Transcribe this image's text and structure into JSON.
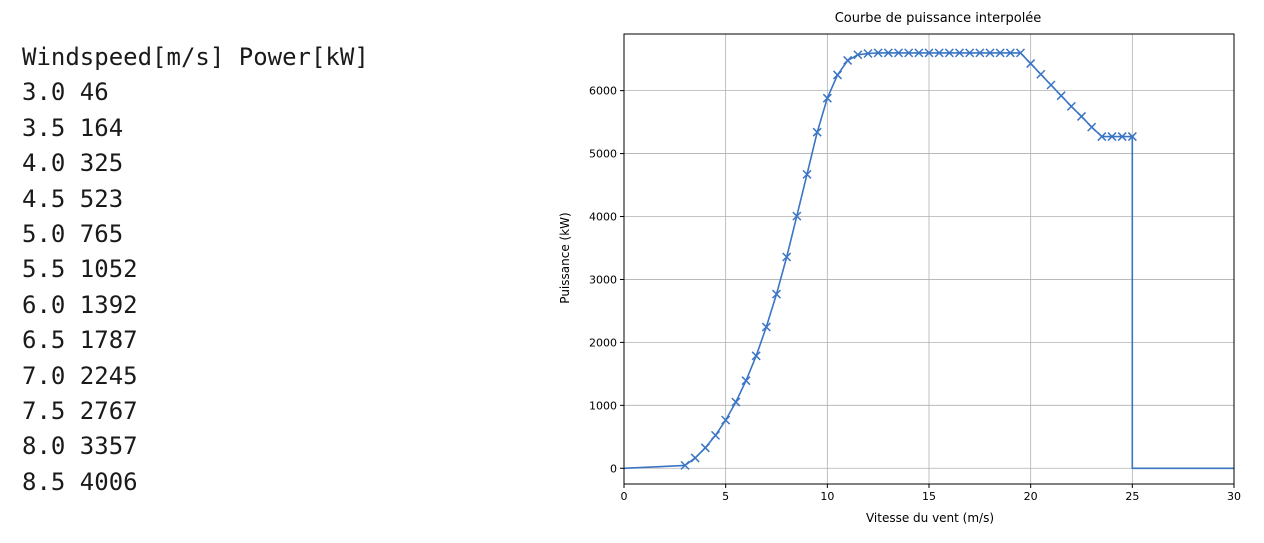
{
  "table": {
    "header": "Windspeed[m/s] Power[kW]",
    "rows": [
      {
        "speed": "3.0",
        "power": "46"
      },
      {
        "speed": "3.5",
        "power": "164"
      },
      {
        "speed": "4.0",
        "power": "325"
      },
      {
        "speed": "4.5",
        "power": "523"
      },
      {
        "speed": "5.0",
        "power": "765"
      },
      {
        "speed": "5.5",
        "power": "1052"
      },
      {
        "speed": "6.0",
        "power": "1392"
      },
      {
        "speed": "6.5",
        "power": "1787"
      },
      {
        "speed": "7.0",
        "power": "2245"
      },
      {
        "speed": "7.5",
        "power": "2767"
      },
      {
        "speed": "8.0",
        "power": "3357"
      },
      {
        "speed": "8.5",
        "power": "4006"
      }
    ]
  },
  "chart_data": {
    "type": "line",
    "title": "Courbe de puissance interpolée",
    "xlabel": "Vitesse du vent (m/s)",
    "ylabel": "Puissance (kW)",
    "xlim": [
      0,
      30
    ],
    "ylim": [
      -250,
      6900
    ],
    "xticks": [
      0,
      5,
      10,
      15,
      20,
      25,
      30
    ],
    "yticks": [
      0,
      1000,
      2000,
      3000,
      4000,
      5000,
      6000
    ],
    "grid": true,
    "line_color": "#3a75c4",
    "line": {
      "x": [
        0,
        3.0,
        3.5,
        4.0,
        4.5,
        5.0,
        5.5,
        6.0,
        6.5,
        7.0,
        7.5,
        8.0,
        8.5,
        9.0,
        9.5,
        10.0,
        10.5,
        11.0,
        11.5,
        12.0,
        12.5,
        13.0,
        13.5,
        14.0,
        14.5,
        15.0,
        15.5,
        16.0,
        16.5,
        17.0,
        17.5,
        18.0,
        18.5,
        19.0,
        19.5,
        20.0,
        20.5,
        21.0,
        21.5,
        22.0,
        22.5,
        23.0,
        23.5,
        24.0,
        24.5,
        25.0,
        25.0,
        30
      ],
      "y": [
        0,
        46,
        164,
        325,
        523,
        765,
        1052,
        1392,
        1787,
        2245,
        2767,
        3357,
        4006,
        4670,
        5340,
        5880,
        6250,
        6480,
        6570,
        6590,
        6600,
        6600,
        6600,
        6600,
        6600,
        6600,
        6600,
        6600,
        6600,
        6600,
        6600,
        6600,
        6600,
        6600,
        6600,
        6430,
        6260,
        6090,
        5920,
        5750,
        5590,
        5420,
        5270,
        5270,
        5270,
        5270,
        0,
        0
      ]
    },
    "markers": {
      "x": [
        3.0,
        3.5,
        4.0,
        4.5,
        5.0,
        5.5,
        6.0,
        6.5,
        7.0,
        7.5,
        8.0,
        8.5,
        9.0,
        9.5,
        10.0,
        10.5,
        11.0,
        11.5,
        12.0,
        12.5,
        13.0,
        13.5,
        14.0,
        14.5,
        15.0,
        15.5,
        16.0,
        16.5,
        17.0,
        17.5,
        18.0,
        18.5,
        19.0,
        19.5,
        20.0,
        20.5,
        21.0,
        21.5,
        22.0,
        22.5,
        23.0,
        23.5,
        24.0,
        24.5,
        25.0
      ],
      "y": [
        46,
        164,
        325,
        523,
        765,
        1052,
        1392,
        1787,
        2245,
        2767,
        3357,
        4006,
        4670,
        5340,
        5880,
        6250,
        6480,
        6570,
        6590,
        6600,
        6600,
        6600,
        6600,
        6600,
        6600,
        6600,
        6600,
        6600,
        6600,
        6600,
        6600,
        6600,
        6600,
        6600,
        6430,
        6260,
        6090,
        5920,
        5750,
        5590,
        5420,
        5270,
        5270,
        5270,
        5270
      ]
    }
  }
}
